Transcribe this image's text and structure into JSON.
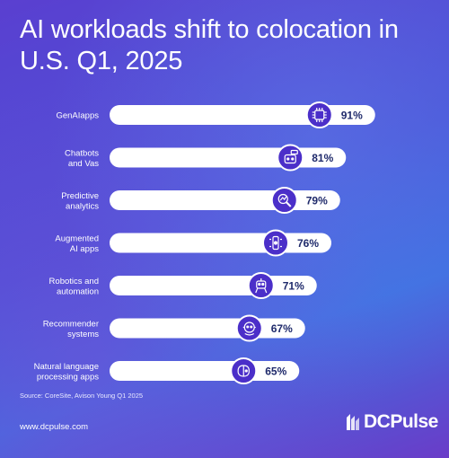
{
  "title": "AI workloads shift to colocation in U.S. Q1, 2025",
  "source": "Source: CoreSite, Avison Young Q1 2025",
  "website": "www.dcpulse.com",
  "brand": "DCPulse",
  "colors": {
    "bar": "#ffffff",
    "icon_circle": "#4b2fc9",
    "value_text": "#1f2a6b"
  },
  "chart_data": {
    "type": "bar",
    "orientation": "horizontal",
    "title": "AI workloads shift to colocation in U.S. Q1, 2025",
    "categories": [
      "GenAIapps",
      "Chatbots\nand Vas",
      "Predictive\nanalytics",
      "Augmented\nAI apps",
      "Robotics and\nautomation",
      "Recommender\nsystems",
      "Natural language\nprocessing apps"
    ],
    "values": [
      91,
      81,
      79,
      76,
      71,
      67,
      65
    ],
    "value_labels": [
      "91%",
      "81%",
      "79%",
      "76%",
      "71%",
      "67%",
      "65%"
    ],
    "icons": [
      "ai-chip-icon",
      "chatbot-icon",
      "analytics-magnifier-icon",
      "ar-headset-icon",
      "robot-icon",
      "recommender-robot-icon",
      "nlp-brain-icon"
    ],
    "unit": "%",
    "xlim": [
      0,
      100
    ],
    "grid": false,
    "legend": "none"
  }
}
